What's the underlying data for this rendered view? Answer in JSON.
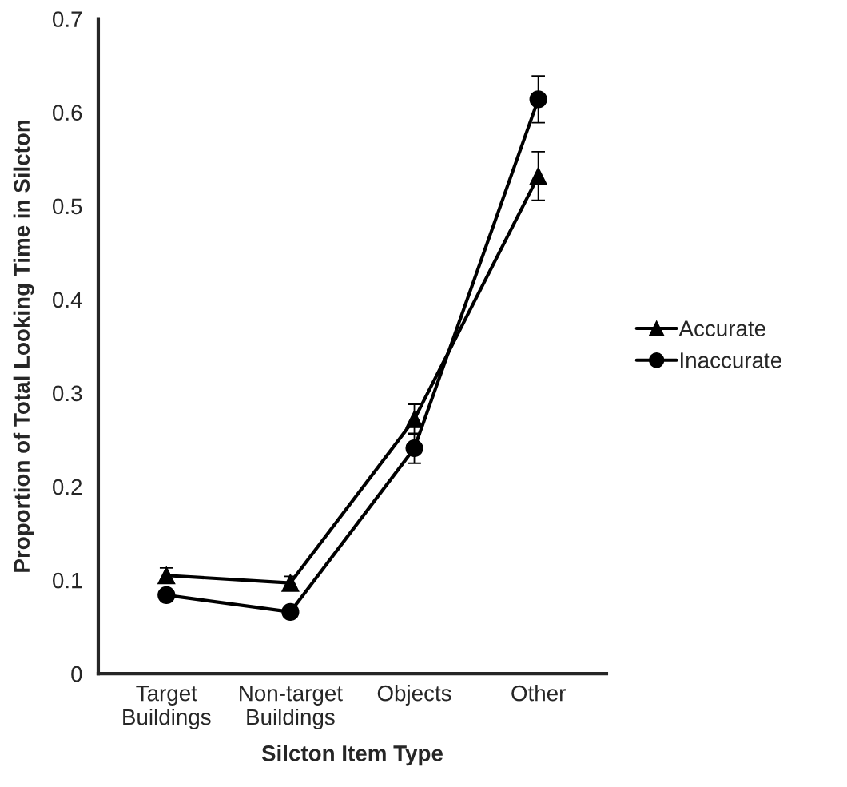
{
  "chart_data": {
    "type": "line",
    "xlabel": "Silcton Item Type",
    "ylabel": "Proportion of Total Looking Time in Silcton",
    "categories": [
      "Target\nBuildings",
      "Non-target\nBuildings",
      "Objects",
      "Other"
    ],
    "series": [
      {
        "name": "Accurate",
        "color": "#000000",
        "marker": "triangle",
        "values": [
          0.105,
          0.097,
          0.272,
          0.532
        ],
        "errors": [
          0.008,
          0.007,
          0.016,
          0.026
        ]
      },
      {
        "name": "Inaccurate",
        "color": "#000000",
        "marker": "circle",
        "values": [
          0.084,
          0.066,
          0.241,
          0.614
        ],
        "errors": [
          0.005,
          0.004,
          0.016,
          0.025
        ]
      }
    ],
    "ylim": [
      0,
      0.7
    ],
    "yticks": [
      {
        "value": 0,
        "label": "0"
      },
      0.1,
      0.2,
      0.3,
      0.4,
      0.5,
      0.6,
      0.7
    ],
    "grid": false,
    "legend": "right",
    "line_style": "solid"
  }
}
